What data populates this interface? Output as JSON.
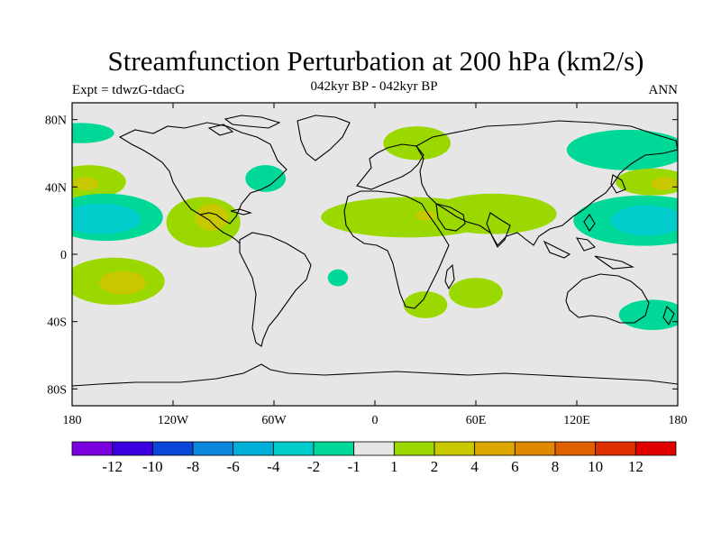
{
  "title": "Streamfunction Perturbation at 200 hPa (km2/s)",
  "subtitle_left": "Expt = tdwzG-tdacG",
  "subtitle_center": "042kyr BP - 042kyr BP",
  "subtitle_right": "ANN",
  "map": {
    "projection": "cylindrical-equidistant",
    "lon_range": [
      -180,
      180
    ],
    "lat_range": [
      -90,
      90
    ],
    "background_color": "#e6e6e6",
    "coastline_color": "#000000",
    "lon_ticks": [
      {
        "value": -180,
        "label": "180"
      },
      {
        "value": -120,
        "label": "120W"
      },
      {
        "value": -60,
        "label": "60W"
      },
      {
        "value": 0,
        "label": "0"
      },
      {
        "value": 60,
        "label": "60E"
      },
      {
        "value": 120,
        "label": "120E"
      },
      {
        "value": 180,
        "label": "180"
      }
    ],
    "lat_ticks": [
      {
        "value": 80,
        "label": "80N"
      },
      {
        "value": 40,
        "label": "40N"
      },
      {
        "value": 0,
        "label": "0"
      },
      {
        "value": -40,
        "label": "40S"
      },
      {
        "value": -80,
        "label": "80S"
      }
    ]
  },
  "colorbar": {
    "colors": [
      "#7b00e0",
      "#3a00e0",
      "#0a47d8",
      "#0a86dc",
      "#00b0d8",
      "#00cccc",
      "#00d898",
      "#e6e6e6",
      "#9ad800",
      "#c8c800",
      "#dca800",
      "#e08800",
      "#e06000",
      "#e03000",
      "#e00000"
    ],
    "labels": [
      "-12",
      "-10",
      "-8",
      "-6",
      "-4",
      "-2",
      "-1",
      "1",
      "2",
      "4",
      "6",
      "8",
      "10",
      "12"
    ]
  },
  "contour_patches": [
    {
      "name": "arctic-pacific-negative",
      "level": "-2",
      "lon": -175,
      "lat": 72,
      "rlon": 20,
      "rlat": 6
    },
    {
      "name": "north-pacific-positive",
      "level": "2",
      "lon": -170,
      "lat": 43,
      "rlon": 22,
      "rlat": 10
    },
    {
      "name": "north-pacific-positive-core",
      "level": "4",
      "lon": -172,
      "lat": 42,
      "rlon": 8,
      "rlat": 4
    },
    {
      "name": "subtropical-pacific-negative",
      "level": "-2",
      "lon": -160,
      "lat": 22,
      "rlon": 34,
      "rlat": 14
    },
    {
      "name": "subtropical-pacific-negative-core",
      "level": "-4",
      "lon": -163,
      "lat": 21,
      "rlon": 24,
      "rlat": 9
    },
    {
      "name": "south-pacific-positive",
      "level": "2",
      "lon": -155,
      "lat": -16,
      "rlon": 30,
      "rlat": 14
    },
    {
      "name": "south-pacific-positive-core",
      "level": "4",
      "lon": -150,
      "lat": -17,
      "rlon": 14,
      "rlat": 7
    },
    {
      "name": "central-america-positive",
      "level": "2",
      "lon": -102,
      "lat": 19,
      "rlon": 22,
      "rlat": 15
    },
    {
      "name": "central-america-positive-core",
      "level": "4",
      "lon": -97,
      "lat": 22,
      "rlon": 10,
      "rlat": 8
    },
    {
      "name": "north-atlantic-negative",
      "level": "-2",
      "lon": -65,
      "lat": 45,
      "rlon": 12,
      "rlat": 8
    },
    {
      "name": "south-atlantic-negative",
      "level": "-2",
      "lon": -22,
      "lat": -14,
      "rlon": 6,
      "rlat": 5
    },
    {
      "name": "tropical-belt-positive",
      "level": "2",
      "lon": 20,
      "lat": 22,
      "rlon": 52,
      "rlat": 12
    },
    {
      "name": "tropical-belt-positive-east",
      "level": "2",
      "lon": 70,
      "lat": 24,
      "rlon": 38,
      "rlat": 12
    },
    {
      "name": "arabia-positive-core",
      "level": "4",
      "lon": 30,
      "lat": 23,
      "rlon": 6,
      "rlat": 3
    },
    {
      "name": "scandinavia-positive",
      "level": "2",
      "lon": 25,
      "lat": 66,
      "rlon": 20,
      "rlat": 10
    },
    {
      "name": "south-africa-positive",
      "level": "2",
      "lon": 30,
      "lat": -30,
      "rlon": 13,
      "rlat": 8
    },
    {
      "name": "south-indian-positive",
      "level": "2",
      "lon": 60,
      "lat": -23,
      "rlon": 16,
      "rlat": 9
    },
    {
      "name": "siberia-negative",
      "level": "-2",
      "lon": 150,
      "lat": 62,
      "rlon": 36,
      "rlat": 12
    },
    {
      "name": "east-pacific-positive",
      "level": "2",
      "lon": 165,
      "lat": 43,
      "rlon": 22,
      "rlat": 8
    },
    {
      "name": "east-pacific-positive-core",
      "level": "4",
      "lon": 172,
      "lat": 42,
      "rlon": 8,
      "rlat": 4
    },
    {
      "name": "west-pacific-negative",
      "level": "-2",
      "lon": 160,
      "lat": 20,
      "rlon": 42,
      "rlat": 15
    },
    {
      "name": "west-pacific-negative-core",
      "level": "-4",
      "lon": 162,
      "lat": 20,
      "rlon": 22,
      "rlat": 9
    },
    {
      "name": "australia-southeast-negative",
      "level": "-2",
      "lon": 165,
      "lat": -36,
      "rlon": 20,
      "rlat": 9
    }
  ]
}
